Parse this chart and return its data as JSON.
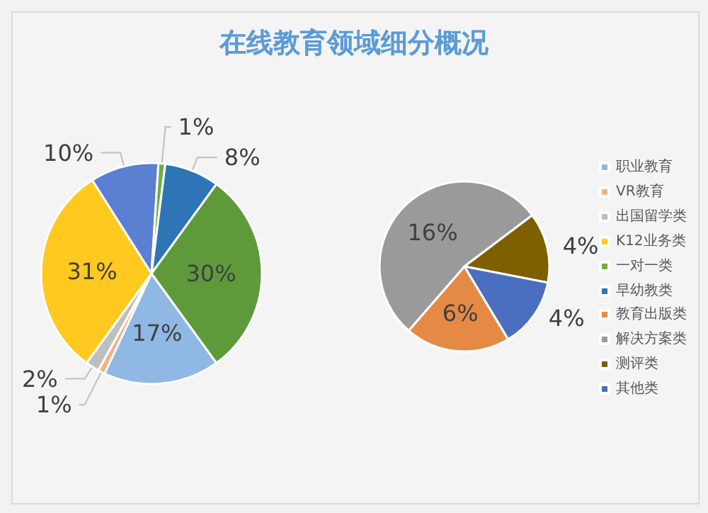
{
  "chart_data": [
    {
      "type": "pie",
      "title": "在线教育领域细分概况",
      "categories": [
        "职业教育",
        "VR教育",
        "出国留学类",
        "K12业务类",
        null,
        "一对一类",
        "早幼教类",
        null
      ],
      "values": [
        17,
        1,
        2,
        31,
        10,
        1,
        8,
        30
      ],
      "colors": [
        "#8fb8e4",
        "#f4b183",
        "#bfbfbf",
        "#ffc91f",
        "#5b7fd1",
        "#70ad47",
        "#2e75b6",
        "#5f9a3a"
      ],
      "value_labels": [
        "17%",
        "1%",
        "2%",
        "31%",
        "10%",
        "1%",
        "8%",
        "30%"
      ],
      "legend": "right"
    },
    {
      "type": "pie",
      "categories": [
        "教育出版类",
        "解决方案类",
        "测评类",
        "其他类"
      ],
      "values": [
        6,
        16,
        4,
        4
      ],
      "colors": [
        "#e58a44",
        "#9a9a9a",
        "#7f6000",
        "#4a6fc0"
      ],
      "value_labels": [
        "6%",
        "16%",
        "4%",
        "4%"
      ],
      "legend": "right"
    }
  ]
}
